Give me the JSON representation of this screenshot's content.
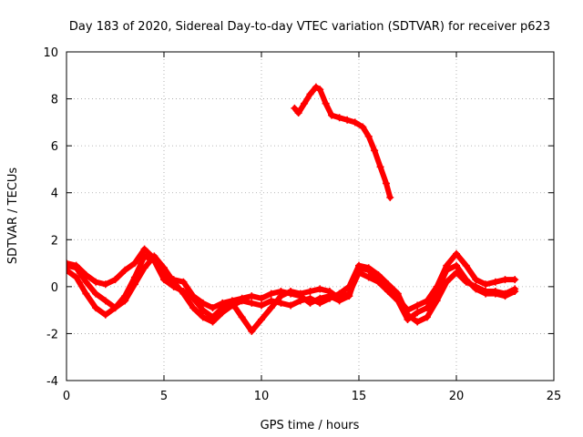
{
  "chart_data": {
    "type": "scatter",
    "title": "Day 183 of 2020, Sidereal Day-to-day VTEC variation (SDTVAR) for receiver p623",
    "xlabel": "GPS time / hours",
    "ylabel": "SDTVAR / TECUs",
    "xlim": [
      0,
      25
    ],
    "ylim": [
      -4,
      10
    ],
    "xticks": [
      0,
      5,
      10,
      15,
      20,
      25
    ],
    "yticks": [
      -4,
      -2,
      0,
      2,
      4,
      6,
      8,
      10
    ],
    "grid": true,
    "marker": "plus",
    "color": "#ff0000",
    "series": [
      {
        "name": "trace-1",
        "x": [
          0,
          0.5,
          1,
          1.5,
          2,
          2.5,
          3,
          3.5,
          4,
          4.5,
          5,
          5.5,
          6,
          6.5,
          7,
          7.5,
          8,
          8.5,
          9,
          9.5,
          10,
          10.5,
          11,
          11.5,
          12,
          12.5,
          13,
          13.5,
          14,
          14.5,
          15,
          15.5,
          16,
          16.5,
          17,
          17.5,
          18,
          18.5,
          19,
          19.5,
          20,
          20.5,
          21,
          21.5,
          22,
          22.5,
          23
        ],
        "y": [
          0.9,
          0.8,
          0.2,
          -0.3,
          -0.6,
          -0.9,
          -0.4,
          0.4,
          1.3,
          1.1,
          0.3,
          0.0,
          -0.2,
          -0.5,
          -1.0,
          -1.3,
          -0.9,
          -0.7,
          -1.3,
          -1.9,
          -1.4,
          -0.9,
          -0.4,
          -0.2,
          -0.3,
          -0.2,
          -0.1,
          -0.2,
          -0.5,
          -0.3,
          0.6,
          0.4,
          0.2,
          -0.2,
          -0.6,
          -1.4,
          -1.1,
          -0.9,
          -0.2,
          0.7,
          0.9,
          0.3,
          -0.1,
          -0.3,
          -0.3,
          -0.4,
          -0.2
        ]
      },
      {
        "name": "trace-2",
        "x": [
          0,
          0.5,
          1,
          1.5,
          2,
          2.5,
          3,
          3.5,
          4,
          4.5,
          5,
          5.5,
          6,
          6.5,
          7,
          7.5,
          8,
          8.5,
          9,
          9.5,
          10,
          10.5,
          11,
          11.5,
          12,
          12.5,
          13,
          13.5,
          14,
          14.5,
          15,
          15.5,
          16,
          16.5,
          17,
          17.5,
          18,
          18.5,
          19,
          19.5,
          20,
          20.5,
          21,
          21.5,
          22,
          22.5,
          23
        ],
        "y": [
          0.7,
          0.4,
          -0.3,
          -0.9,
          -1.2,
          -0.9,
          -0.6,
          0.1,
          0.8,
          1.3,
          0.8,
          0.2,
          -0.3,
          -0.9,
          -1.3,
          -1.5,
          -1.1,
          -0.8,
          -0.6,
          -0.7,
          -0.8,
          -0.6,
          -0.7,
          -0.8,
          -0.6,
          -0.5,
          -0.7,
          -0.5,
          -0.3,
          0.0,
          0.9,
          0.8,
          0.5,
          0.1,
          -0.3,
          -1.2,
          -1.5,
          -1.3,
          -0.6,
          0.2,
          0.6,
          0.2,
          0.0,
          -0.2,
          -0.2,
          -0.3,
          -0.1
        ]
      },
      {
        "name": "trace-3",
        "x": [
          0,
          0.5,
          1,
          1.5,
          2,
          2.5,
          3,
          3.5,
          4,
          4.5,
          5,
          5.5,
          6,
          6.5,
          7,
          7.5,
          8,
          8.5,
          9,
          9.5,
          10,
          10.5,
          11,
          11.5,
          12,
          12.5,
          13,
          13.5,
          14,
          14.5,
          15,
          15.5,
          16,
          16.5,
          17,
          17.5,
          18,
          18.5,
          19,
          19.5,
          20,
          20.5,
          21,
          21.5,
          22,
          22.5,
          23
        ],
        "y": [
          1.0,
          0.9,
          0.5,
          0.2,
          0.1,
          0.3,
          0.7,
          1.0,
          1.6,
          1.2,
          0.5,
          0.3,
          0.2,
          -0.4,
          -0.7,
          -0.9,
          -0.7,
          -0.6,
          -0.5,
          -0.4,
          -0.5,
          -0.3,
          -0.2,
          -0.3,
          -0.4,
          -0.7,
          -0.5,
          -0.4,
          -0.6,
          -0.4,
          0.8,
          0.7,
          0.3,
          -0.1,
          -0.5,
          -1.0,
          -0.8,
          -0.6,
          0.0,
          0.9,
          1.4,
          0.9,
          0.3,
          0.1,
          0.2,
          0.3,
          0.3
        ]
      },
      {
        "name": "trace-4",
        "x": [
          11.7,
          11.9,
          12.2,
          12.5,
          12.8,
          13.0,
          13.3,
          13.6,
          14.0,
          14.4,
          14.8,
          15.2,
          15.5,
          15.8,
          16.1,
          16.4,
          16.6
        ],
        "y": [
          7.6,
          7.4,
          7.8,
          8.2,
          8.5,
          8.4,
          7.8,
          7.3,
          7.2,
          7.1,
          7.0,
          6.8,
          6.4,
          5.8,
          5.1,
          4.4,
          3.8
        ]
      }
    ]
  }
}
